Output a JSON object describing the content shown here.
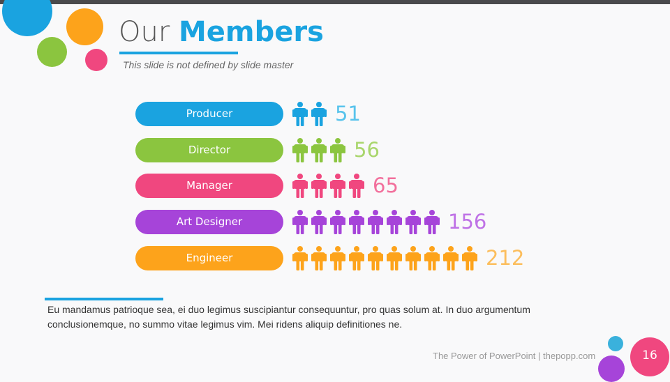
{
  "title": {
    "light": "Our",
    "bold": "Members"
  },
  "subtitle": "This slide is not defined by slide master",
  "chart_data": {
    "type": "bar",
    "categories": [
      "Producer",
      "Director",
      "Manager",
      "Art Designer",
      "Engineer"
    ],
    "values": [
      51,
      56,
      65,
      156,
      212
    ],
    "icon_counts": [
      2,
      3,
      4,
      8,
      10
    ],
    "colors": [
      "#1aa3e0",
      "#8bc53f",
      "#f0477f",
      "#a644d9",
      "#fda31b"
    ],
    "value_label_colors": [
      "#58c3ec",
      "#a9d66c",
      "#f2709c",
      "#bf72e6",
      "#fcbe5d"
    ],
    "icon": "person-icon"
  },
  "description": "Eu mandamus patrioque sea, ei duo legimus suscipiantur consequuntur, pro quas solum at. In duo argumentum conclusionemque, no summo vitae legimus vim. Mei ridens aliquip definitiones ne.",
  "footer": "The Power of PowerPoint | thepopp.com",
  "page_number": "16",
  "colors": {
    "top_bar": "#4a4a4c",
    "blue": "#1aa3e0",
    "orange": "#fda31b",
    "green": "#8bc53f",
    "pink": "#f0477f",
    "purple": "#a644d9",
    "page_badge": "#f0477f"
  }
}
